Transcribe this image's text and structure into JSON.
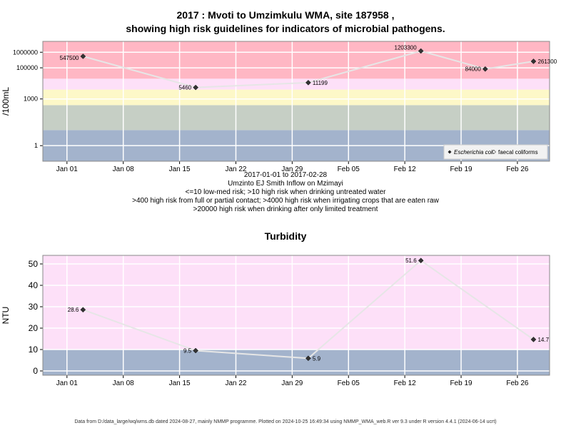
{
  "chart_data": [
    {
      "type": "line",
      "title_line1": "2017 : Mvoti to Umzimkulu WMA, site 187958 ,",
      "title_line2": "showing high risk guidelines for indicators of microbial pathogens.",
      "ylabel": "/100mL",
      "yscale": "log",
      "ylim": [
        0.1,
        5000000
      ],
      "yticks": [
        {
          "value": 1,
          "label": "1"
        },
        {
          "value": 1000,
          "label": "1000"
        },
        {
          "value": 100000,
          "label": "100000"
        },
        {
          "value": 1000000,
          "label": "1000000"
        }
      ],
      "xticks": [
        "Jan 01",
        "Jan 08",
        "Jan 15",
        "Jan 22",
        "Jan 29",
        "Feb 05",
        "Feb 12",
        "Feb 19",
        "Feb 26"
      ],
      "xlim": [
        "2016-12-29",
        "2017-03-02"
      ],
      "bands": [
        {
          "from": 0.1,
          "to": 10,
          "color": "#a3b3cc"
        },
        {
          "from": 10,
          "to": 400,
          "color": "#c6cfc5"
        },
        {
          "from": 400,
          "to": 4000,
          "color": "#fdf8c8"
        },
        {
          "from": 4000,
          "to": 20000,
          "color": "#fde0f8"
        },
        {
          "from": 20000,
          "to": 5000000,
          "color": "#ffb7c4"
        }
      ],
      "series": [
        {
          "name": "Escherichia coli",
          "points": [
            {
              "x": "2017-01-03",
              "y": 547500,
              "label": "547500"
            },
            {
              "x": "2017-01-17",
              "y": 5460,
              "label": "5460"
            },
            {
              "x": "2017-01-31",
              "y": 11199,
              "label": "11199"
            },
            {
              "x": "2017-02-14",
              "y": 1203300,
              "label": "1203300"
            },
            {
              "x": "2017-02-22",
              "y": 84000,
              "label": "84000"
            },
            {
              "x": "2017-02-28",
              "y": 261300,
              "label": "261300"
            }
          ]
        }
      ],
      "legend": {
        "placement": "bottom-right",
        "items": [
          "Escherichia coli",
          "faecal coliforms"
        ]
      },
      "notes": [
        "2017-01-01 to 2017-02-28",
        "Umzinto EJ Smith Inflow on Mzimayi",
        "<=10 low-med risk; >10 high risk when drinking untreated water",
        ">400 high risk from full or partial contact; >4000 high risk when irrigating crops that are eaten raw",
        ">20000 high risk when drinking after only limited treatment"
      ]
    },
    {
      "type": "line",
      "title": "Turbidity",
      "ylabel": "NTU",
      "yscale": "linear",
      "ylim": [
        -2,
        54
      ],
      "yticks": [
        0,
        10,
        20,
        30,
        40,
        50
      ],
      "xticks": [
        "Jan 01",
        "Jan 08",
        "Jan 15",
        "Jan 22",
        "Jan 29",
        "Feb 05",
        "Feb 12",
        "Feb 19",
        "Feb 26"
      ],
      "xlim": [
        "2016-12-29",
        "2017-03-02"
      ],
      "bands": [
        {
          "from": -2,
          "to": 10,
          "color": "#a3b3cc"
        },
        {
          "from": 10,
          "to": 54,
          "color": "#fde0f8"
        }
      ],
      "series": [
        {
          "name": "",
          "points": [
            {
              "x": "2017-01-03",
              "y": 28.6,
              "label": "28.6"
            },
            {
              "x": "2017-01-17",
              "y": 9.5,
              "label": "9.5"
            },
            {
              "x": "2017-01-31",
              "y": 5.9,
              "label": "5.9"
            },
            {
              "x": "2017-02-14",
              "y": 51.6,
              "label": "51.6"
            },
            {
              "x": "2017-02-28",
              "y": 14.7,
              "label": "14.7"
            }
          ]
        }
      ]
    }
  ],
  "footer": "Data from D:/data_large/wq/wms.db dated 2024-08-27, mainly NMMP programme. Plotted on 2024-10-25 16:49:34 using NMMP_WMA_web.R ver 9.3 under R version 4.4.1 (2024-06-14 ucrt)"
}
